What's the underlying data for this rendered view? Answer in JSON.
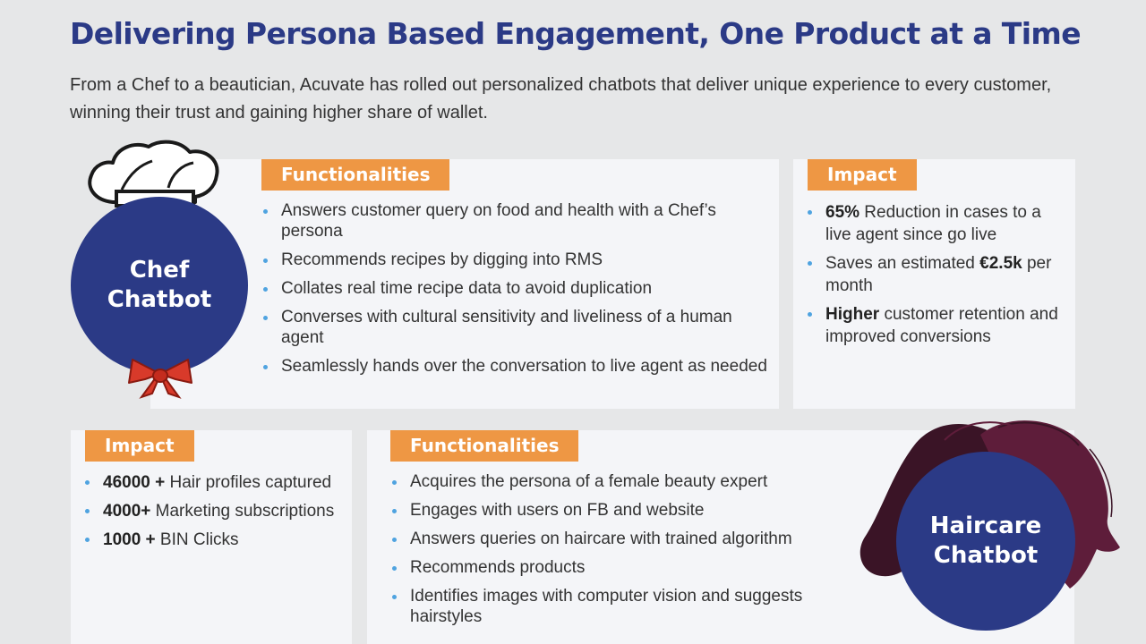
{
  "header": {
    "title": "Delivering Persona Based Engagement, One Product at a Time",
    "subtitle": "From a Chef to a beautician, Acuvate has rolled out personalized chatbots that deliver unique experience to every customer, winning their trust and gaining higher share of wallet."
  },
  "chef": {
    "name_line1": "Chef",
    "name_line2": "Chatbot",
    "functionalities": {
      "label": "Functionalities",
      "items": [
        "Answers customer query on food and health with a Chef’s persona",
        "Recommends recipes by digging into RMS",
        "Collates real time recipe data to avoid duplication",
        "Converses with cultural sensitivity and liveliness of a human agent",
        "Seamlessly hands over the conversation to live agent as needed"
      ]
    },
    "impact": {
      "label": "Impact",
      "items": [
        {
          "bold": "65%",
          "text": " Reduction in cases to a live agent since go live"
        },
        {
          "pre": "Saves an estimated ",
          "bold": "€2.5k",
          "text": " per month"
        },
        {
          "bold": "Higher",
          "text": " customer retention and improved conversions"
        }
      ]
    }
  },
  "haircare": {
    "name_line1": "Haircare",
    "name_line2": "Chatbot",
    "impact": {
      "label": "Impact",
      "items": [
        {
          "bold": "46000 +",
          "text": " Hair profiles captured"
        },
        {
          "bold": "4000+",
          "text": " Marketing subscriptions"
        },
        {
          "bold": "1000 +",
          "text": " BIN Clicks"
        }
      ]
    },
    "functionalities": {
      "label": "Functionalities",
      "items": [
        "Acquires the persona of a female beauty expert",
        "Engages with users on FB and website",
        "Answers queries on haircare with trained algorithm",
        "Recommends products",
        "Identifies images with computer vision and suggests hairstyles"
      ]
    }
  },
  "colors": {
    "navy": "#2b3a86",
    "orange": "#ee9744",
    "bullet": "#4fa3e0",
    "hair": "#3a1426",
    "bow": "#d83a2a"
  },
  "icons": [
    "chef-hat-icon",
    "red-bow-icon",
    "hair-illustration-icon"
  ]
}
